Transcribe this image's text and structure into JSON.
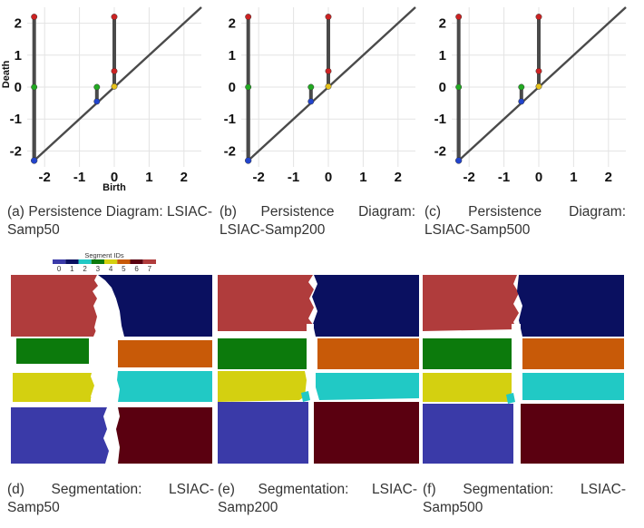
{
  "persistence_axis": {
    "ticks": [
      "-2",
      "-1",
      "0",
      "1",
      "2"
    ],
    "xlabel": "Birth",
    "ylabel": "Death"
  },
  "diagrams": [
    {
      "caption": "(a) Persistence Diagram: LSIAC-Samp50",
      "sample": "LSIAC-Samp50"
    },
    {
      "caption": "(b) Persistence Diagram: LSIAC-Samp200",
      "sample": "LSIAC-Samp200"
    },
    {
      "caption": "(c) Persistence Diagram: LSIAC-Samp500",
      "sample": "LSIAC-Samp500"
    }
  ],
  "chart_data": [
    {
      "type": "scatter",
      "title": "",
      "xlabel": "Birth",
      "ylabel": "Death",
      "xlim": [
        -2.5,
        2.5
      ],
      "ylim": [
        -2.5,
        2.5
      ],
      "diagonal": true,
      "pairs": [
        {
          "birth": -2.3,
          "death": 2.2
        },
        {
          "birth": -2.3,
          "death": 0.0
        },
        {
          "birth": -0.5,
          "death": -0.45
        },
        {
          "birth": -0.5,
          "death": 0.0
        },
        {
          "birth": 0.0,
          "death": 0.02
        },
        {
          "birth": 0.0,
          "death": 0.5
        },
        {
          "birth": 0.0,
          "death": 2.2
        }
      ]
    },
    {
      "type": "scatter",
      "title": "",
      "xlim": [
        -2.5,
        2.5
      ],
      "ylim": [
        -2.5,
        2.5
      ],
      "diagonal": true,
      "pairs": [
        {
          "birth": -2.3,
          "death": 2.2
        },
        {
          "birth": -2.3,
          "death": 0.0
        },
        {
          "birth": -0.5,
          "death": -0.45
        },
        {
          "birth": -0.5,
          "death": 0.0
        },
        {
          "birth": 0.0,
          "death": 0.02
        },
        {
          "birth": 0.0,
          "death": 0.5
        },
        {
          "birth": 0.0,
          "death": 2.2
        }
      ]
    },
    {
      "type": "scatter",
      "title": "",
      "xlim": [
        -2.5,
        2.5
      ],
      "ylim": [
        -2.5,
        2.5
      ],
      "diagonal": true,
      "pairs": [
        {
          "birth": -2.3,
          "death": 2.2
        },
        {
          "birth": -2.3,
          "death": 0.0
        },
        {
          "birth": -0.5,
          "death": -0.45
        },
        {
          "birth": -0.5,
          "death": 0.0
        },
        {
          "birth": 0.0,
          "death": 0.02
        },
        {
          "birth": 0.0,
          "death": 0.5
        },
        {
          "birth": 0.0,
          "death": 2.2
        }
      ]
    }
  ],
  "legend": {
    "title": "Segment IDs",
    "ids": [
      "0",
      "1",
      "2",
      "3",
      "4",
      "5",
      "6",
      "7"
    ],
    "colors": [
      "#3a3aa8",
      "#0a1060",
      "#21c9c5",
      "#0c7a0c",
      "#d4d010",
      "#c85a08",
      "#5a0010",
      "#b03c3c"
    ]
  },
  "segmentations": [
    {
      "caption": "(d) Segmentation: LSIAC-Samp50",
      "sample": "LSIAC-Samp50"
    },
    {
      "caption": "(e) Segmentation: LSIAC-Samp200",
      "sample": "LSIAC-Samp200"
    },
    {
      "caption": "(f) Segmentation: LSIAC-Samp500",
      "sample": "LSIAC-Samp500"
    }
  ]
}
